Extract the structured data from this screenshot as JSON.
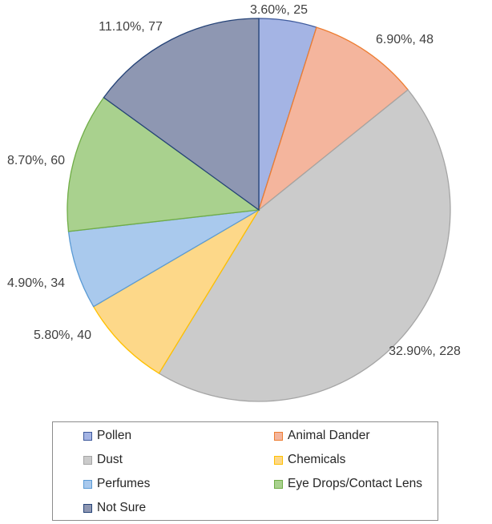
{
  "chart_data": {
    "type": "pie",
    "title": "",
    "start_angle_deg": 0,
    "direction": "clockwise",
    "legend_position": "bottom",
    "slices": [
      {
        "name": "Pollen",
        "percent": 3.6,
        "count": 25,
        "label": "3.60%, 25",
        "color": "#a4b4e4",
        "border": "#3e5a9c"
      },
      {
        "name": "Animal Dander",
        "percent": 6.9,
        "count": 48,
        "label": "6.90%, 48",
        "color": "#f4b59d",
        "border": "#ed7d31"
      },
      {
        "name": "Dust",
        "percent": 32.9,
        "count": 228,
        "label": "32.90%, 228",
        "color": "#cbcbcb",
        "border": "#a5a5a5"
      },
      {
        "name": "Chemicals",
        "percent": 5.8,
        "count": 40,
        "label": "5.80%, 40",
        "color": "#fdd889",
        "border": "#ffc000"
      },
      {
        "name": "Perfumes",
        "percent": 4.9,
        "count": 34,
        "label": "4.90%, 34",
        "color": "#a9c9ed",
        "border": "#5b9bd5"
      },
      {
        "name": "Eye Drops/Contact Lens",
        "percent": 8.7,
        "count": 60,
        "label": "8.70%, 60",
        "color": "#a9d18e",
        "border": "#70ad47"
      },
      {
        "name": "Not Sure",
        "percent": 11.1,
        "count": 77,
        "label": "11.10%, 77",
        "color": "#8e97b2",
        "border": "#264478"
      }
    ]
  }
}
